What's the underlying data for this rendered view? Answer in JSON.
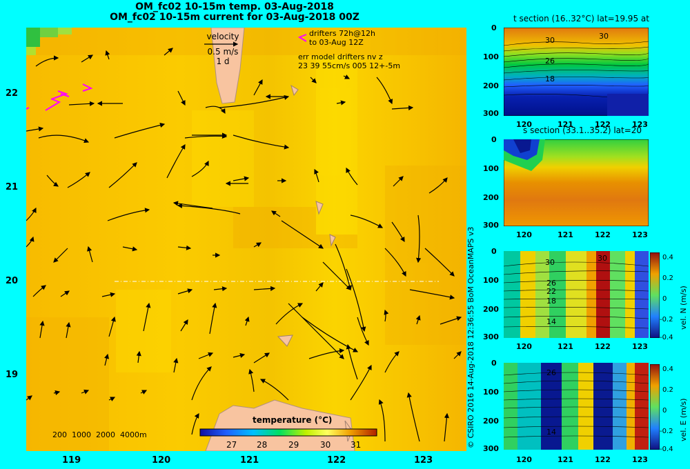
{
  "title": {
    "line1": "OM_fc02 10-15m temp. 03-Aug-2018",
    "line2": "OM_fc02 10-15m current for 03-Aug-2018 00Z"
  },
  "map": {
    "y_ticks": [
      "22",
      "21",
      "20",
      "19"
    ],
    "x_ticks": [
      "119",
      "120",
      "121",
      "122",
      "123"
    ],
    "velocity_legend": {
      "title": "velocity",
      "scale": "0.5 m/s",
      "period": "1 d"
    },
    "drifters_text": [
      "drifters 72h@12h",
      "to 03-Aug 12Z"
    ],
    "err_text": [
      "err model drifters nv z",
      "23 39 55cm/s 005 12+-5m"
    ],
    "depth_text": "200  1000  2000  4000m",
    "colorbar": {
      "title": "temperature (°C)",
      "ticks": [
        "27",
        "28",
        "29",
        "30",
        "31"
      ]
    }
  },
  "t_section": {
    "title": "t section (16..32°C) lat=19.95 at",
    "y_ticks": [
      "0",
      "100",
      "200",
      "300"
    ],
    "x_ticks": [
      "120",
      "121",
      "122",
      "123"
    ],
    "contour_labels": [
      "30",
      "30",
      "26",
      "18"
    ]
  },
  "s_section": {
    "title": "s section (33.1..35.2) lat=20",
    "y_ticks": [
      "0",
      "100",
      "200",
      "300"
    ],
    "x_ticks": [
      "120",
      "121",
      "122",
      "123"
    ]
  },
  "vn_section": {
    "y_ticks": [
      "0",
      "100",
      "200",
      "300"
    ],
    "x_ticks": [
      "120",
      "121",
      "122",
      "123"
    ],
    "contour_labels": [
      "30",
      "30",
      "26",
      "22",
      "18",
      "14"
    ],
    "cbar_ticks": [
      "0.4",
      "0.2",
      "0",
      "-0.2",
      "-0.4"
    ],
    "cbar_label": "vel. N  (m/s)"
  },
  "ve_section": {
    "y_ticks": [
      "0",
      "100",
      "200",
      "300"
    ],
    "x_ticks": [
      "120",
      "121",
      "122",
      "123"
    ],
    "contour_labels": [
      "26",
      "14"
    ],
    "cbar_ticks": [
      "0.4",
      "0.2",
      "0",
      "-0.2",
      "-0.4"
    ],
    "cbar_label": "vel. E  (m/s)"
  },
  "credit": "© CSIRO 2016   14-Aug-2018 12:36:55 BoM OceanMAPS v3",
  "colors": {
    "background": "#00ffff",
    "sea_warm": "#f5b800",
    "sea_mid": "#fcd200",
    "land": "#f8c4a0",
    "drifter": "#ff00ff"
  },
  "icons": [
    "velocity-arrow-icon",
    "drifter-chevron-icon"
  ]
}
